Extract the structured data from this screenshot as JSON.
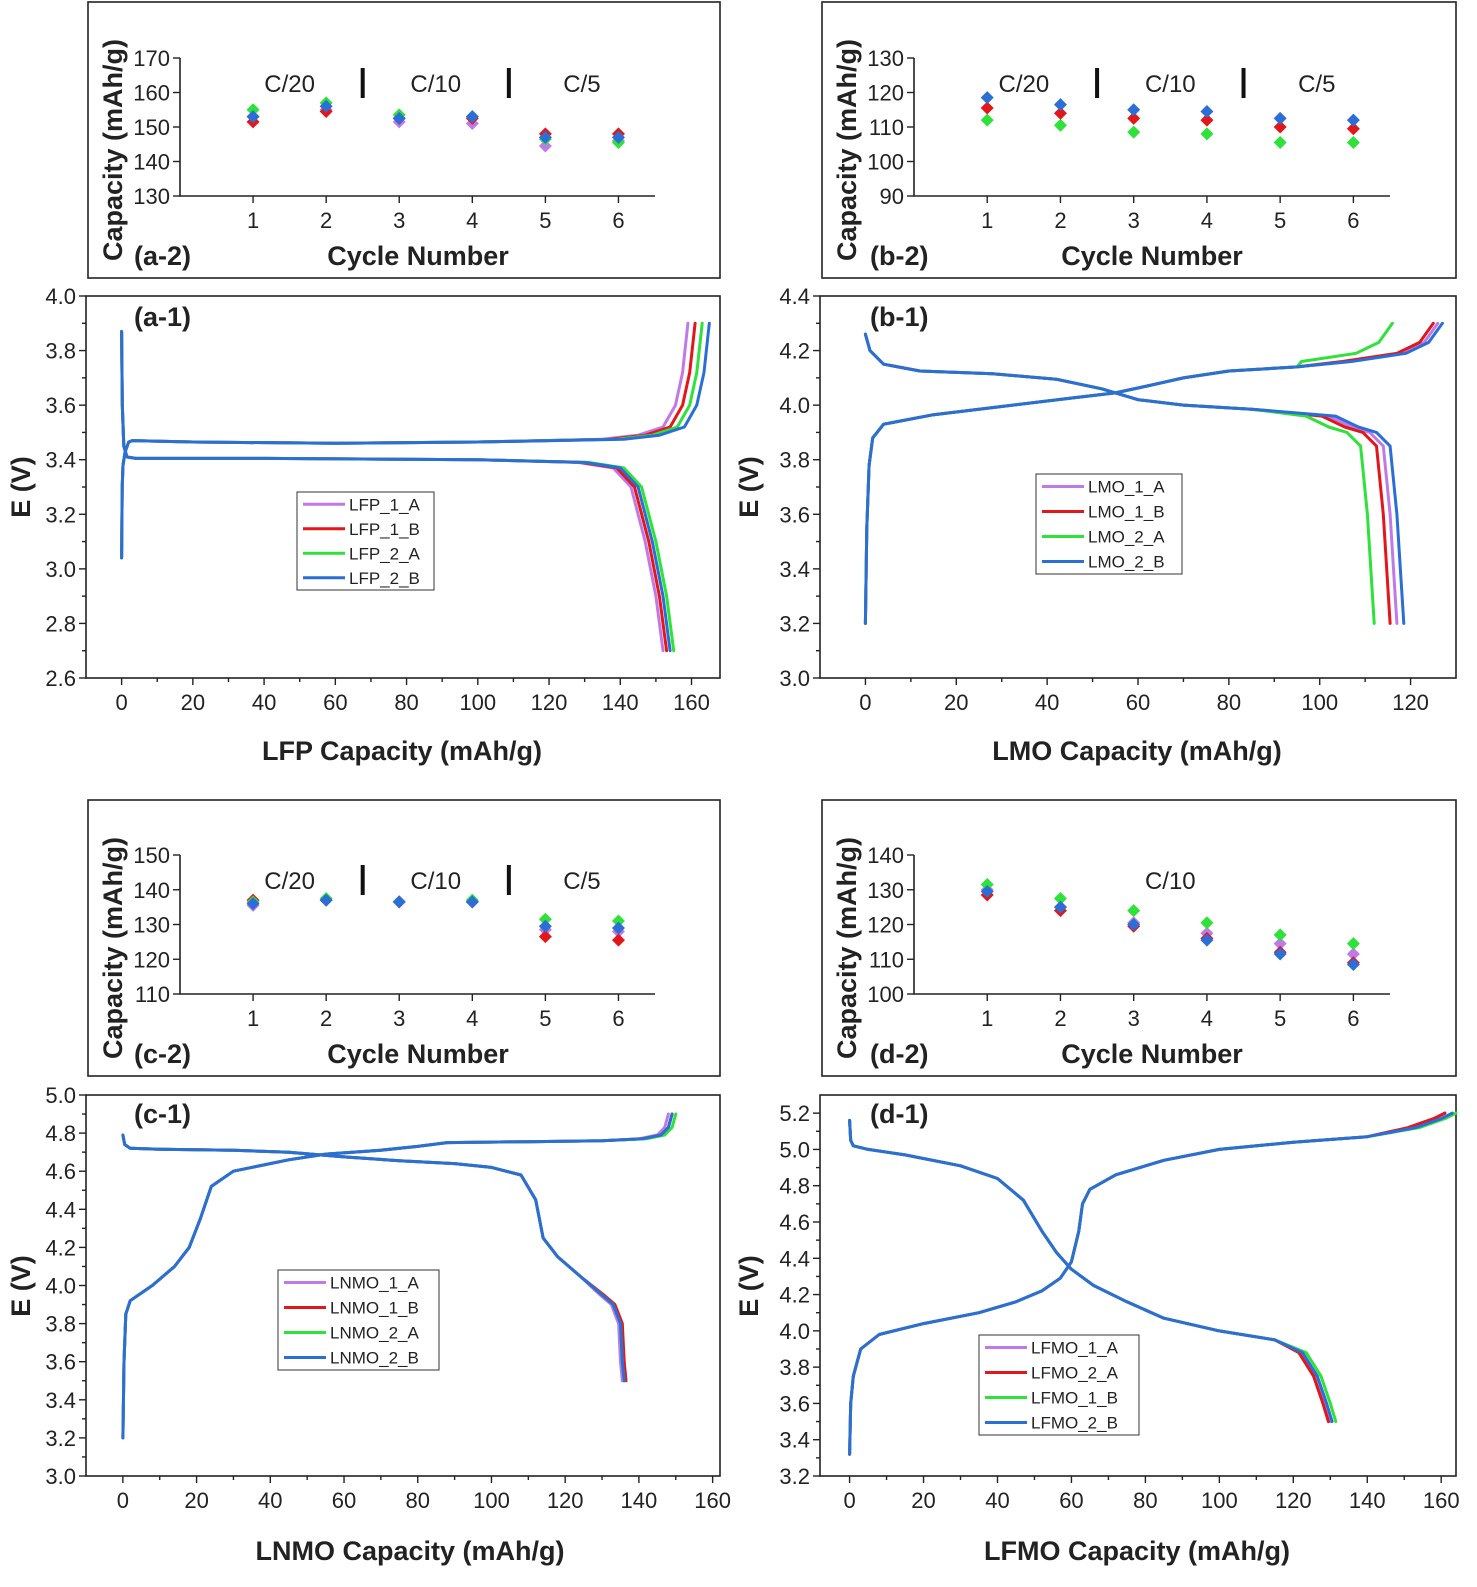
{
  "colors": {
    "purple": "#c07ae8",
    "red": "#e3171a",
    "green": "#2ee23a",
    "blue": "#2b6fd6"
  },
  "chart_data": [
    {
      "id": "a-2",
      "type": "scatter",
      "panel_label": "(a-2)",
      "xlabel": "Cycle Number",
      "ylabel": "Capacity (mAh/g)",
      "xlim": [
        0.0,
        6.5
      ],
      "ylim": [
        130,
        170
      ],
      "xticks": [
        1,
        2,
        3,
        4,
        5,
        6
      ],
      "yticks": [
        130,
        140,
        150,
        160,
        170
      ],
      "rate_labels": [
        {
          "text": "C/20",
          "x": 1.5
        },
        {
          "text": "C/10",
          "x": 3.5
        },
        {
          "text": "C/5",
          "x": 5.5
        }
      ],
      "dividers": [
        2.5,
        4.5
      ],
      "series": [
        {
          "color": "purple",
          "x": [
            1,
            2,
            3,
            4,
            5,
            6
          ],
          "y": [
            153,
            155,
            151.5,
            151,
            144.5,
            146
          ]
        },
        {
          "color": "red",
          "x": [
            1,
            2,
            3,
            4,
            5,
            6
          ],
          "y": [
            151.5,
            154.5,
            152.5,
            152.5,
            148,
            148
          ]
        },
        {
          "color": "green",
          "x": [
            1,
            2,
            3,
            4,
            5,
            6
          ],
          "y": [
            155,
            157,
            153.5,
            153,
            146.5,
            145.5
          ]
        },
        {
          "color": "blue",
          "x": [
            1,
            2,
            3,
            4,
            5,
            6
          ],
          "y": [
            153,
            156,
            152.5,
            153,
            147,
            147
          ]
        }
      ]
    },
    {
      "id": "b-2",
      "type": "scatter",
      "panel_label": "(b-2)",
      "xlabel": "Cycle Number",
      "ylabel": "Capacity (mAh/g)",
      "xlim": [
        0.0,
        6.5
      ],
      "ylim": [
        90,
        130
      ],
      "xticks": [
        1,
        2,
        3,
        4,
        5,
        6
      ],
      "yticks": [
        90,
        100,
        110,
        120,
        130
      ],
      "rate_labels": [
        {
          "text": "C/20",
          "x": 1.5
        },
        {
          "text": "C/10",
          "x": 3.5
        },
        {
          "text": "C/5",
          "x": 5.5
        }
      ],
      "dividers": [
        2.5,
        4.5
      ],
      "series": [
        {
          "color": "green",
          "x": [
            1,
            2,
            3,
            4,
            5,
            6
          ],
          "y": [
            112,
            110.5,
            108.5,
            108,
            105.5,
            105.5
          ]
        },
        {
          "color": "red",
          "x": [
            1,
            2,
            3,
            4,
            5,
            6
          ],
          "y": [
            115.5,
            114,
            112.5,
            112,
            110,
            109.5
          ]
        },
        {
          "color": "blue",
          "x": [
            1,
            2,
            3,
            4,
            5,
            6
          ],
          "y": [
            118.5,
            116.5,
            115,
            114.5,
            112.5,
            112
          ]
        }
      ]
    },
    {
      "id": "a-1",
      "type": "line",
      "panel_label": "(a-1)",
      "xlabel": "LFP Capacity (mAh/g)",
      "ylabel": "E (V)",
      "xlim": [
        -10,
        168
      ],
      "ylim": [
        2.6,
        4.0
      ],
      "xticks": [
        0,
        20,
        40,
        60,
        80,
        100,
        120,
        140,
        160
      ],
      "yticks": [
        2.6,
        2.8,
        3.0,
        3.2,
        3.4,
        3.6,
        3.8,
        4.0
      ],
      "legend": {
        "position": "center-left",
        "entries": [
          {
            "name": "LFP_1_A",
            "color": "purple"
          },
          {
            "name": "LFP_1_B",
            "color": "red"
          },
          {
            "name": "LFP_2_A",
            "color": "green"
          },
          {
            "name": "LFP_2_B",
            "color": "blue"
          }
        ]
      },
      "series": [
        {
          "color": "purple",
          "charge_end": 159,
          "discharge_end": 152
        },
        {
          "color": "red",
          "charge_end": 161,
          "discharge_end": 153
        },
        {
          "color": "green",
          "charge_end": 163,
          "discharge_end": 155
        },
        {
          "color": "blue",
          "charge_end": 165,
          "discharge_end": 154
        }
      ]
    },
    {
      "id": "b-1",
      "type": "line",
      "panel_label": "(b-1)",
      "xlabel": "LMO Capacity (mAh/g)",
      "ylabel": "E (V)",
      "xlim": [
        -10,
        130
      ],
      "ylim": [
        3.0,
        4.4
      ],
      "xticks": [
        0,
        20,
        40,
        60,
        80,
        100,
        120
      ],
      "yticks": [
        3.0,
        3.2,
        3.4,
        3.6,
        3.8,
        4.0,
        4.2,
        4.4
      ],
      "legend": {
        "position": "center",
        "entries": [
          {
            "name": "LMO_1_A",
            "color": "purple"
          },
          {
            "name": "LMO_1_B",
            "color": "red"
          },
          {
            "name": "LMO_2_A",
            "color": "green"
          },
          {
            "name": "LMO_2_B",
            "color": "blue"
          }
        ]
      },
      "series": [
        {
          "color": "purple",
          "charge_end": 126,
          "discharge_end": 117
        },
        {
          "color": "red",
          "charge_end": 125,
          "discharge_end": 115.5
        },
        {
          "color": "green",
          "charge_end": 116,
          "discharge_end": 112
        },
        {
          "color": "blue",
          "charge_end": 127,
          "discharge_end": 118.5
        }
      ]
    },
    {
      "id": "c-2",
      "type": "scatter",
      "panel_label": "(c-2)",
      "xlabel": "Cycle Number",
      "ylabel": "Capacity (mAh/g)",
      "xlim": [
        0.0,
        6.5
      ],
      "ylim": [
        110,
        150
      ],
      "xticks": [
        1,
        2,
        3,
        4,
        5,
        6
      ],
      "yticks": [
        110,
        120,
        130,
        140,
        150
      ],
      "rate_labels": [
        {
          "text": "C/20",
          "x": 1.5
        },
        {
          "text": "C/10",
          "x": 3.5
        },
        {
          "text": "C/5",
          "x": 5.5
        }
      ],
      "dividers": [
        2.5,
        4.5
      ],
      "series": [
        {
          "color": "purple",
          "x": [
            1,
            2,
            3,
            4,
            5,
            6
          ],
          "y": [
            135.5,
            137,
            136.5,
            136.5,
            128.5,
            128
          ]
        },
        {
          "color": "red",
          "x": [
            1,
            2,
            3,
            4,
            5,
            6
          ],
          "y": [
            137,
            137,
            136.5,
            136.5,
            126.5,
            125.5
          ]
        },
        {
          "color": "green",
          "x": [
            1,
            2,
            3,
            4,
            5,
            6
          ],
          "y": [
            136.5,
            137.5,
            136.5,
            137,
            131.5,
            131
          ]
        },
        {
          "color": "blue",
          "x": [
            1,
            2,
            3,
            4,
            5,
            6
          ],
          "y": [
            136,
            137,
            136.5,
            136.5,
            129.5,
            129
          ]
        }
      ]
    },
    {
      "id": "d-2",
      "type": "scatter",
      "panel_label": "(d-2)",
      "xlabel": "Cycle Number",
      "ylabel": "Capacity (mAh/g)",
      "xlim": [
        0.0,
        6.5
      ],
      "ylim": [
        100,
        140
      ],
      "xticks": [
        1,
        2,
        3,
        4,
        5,
        6
      ],
      "yticks": [
        100,
        110,
        120,
        130,
        140
      ],
      "rate_labels": [
        {
          "text": "C/10",
          "x": 3.5
        }
      ],
      "dividers": [],
      "series": [
        {
          "color": "purple",
          "x": [
            1,
            2,
            3,
            4,
            5,
            6
          ],
          "y": [
            130,
            125,
            120.5,
            117.5,
            114.5,
            111.5
          ]
        },
        {
          "color": "red",
          "x": [
            1,
            2,
            3,
            4,
            5,
            6
          ],
          "y": [
            128.5,
            124,
            119.5,
            116,
            112,
            109
          ]
        },
        {
          "color": "green",
          "x": [
            1,
            2,
            3,
            4,
            5,
            6
          ],
          "y": [
            131.5,
            127.5,
            124,
            120.5,
            117,
            114.5
          ]
        },
        {
          "color": "blue",
          "x": [
            1,
            2,
            3,
            4,
            5,
            6
          ],
          "y": [
            129.5,
            125,
            120,
            115.5,
            111.5,
            108.5
          ]
        }
      ]
    },
    {
      "id": "c-1",
      "type": "line",
      "panel_label": "(c-1)",
      "xlabel": "LNMO Capacity (mAh/g)",
      "ylabel": "E (V)",
      "xlim": [
        -10,
        162
      ],
      "ylim": [
        3.0,
        5.0
      ],
      "xticks": [
        0,
        20,
        40,
        60,
        80,
        100,
        120,
        140,
        160
      ],
      "yticks": [
        3.0,
        3.2,
        3.4,
        3.6,
        3.8,
        4.0,
        4.2,
        4.4,
        4.6,
        4.8,
        5.0
      ],
      "legend": {
        "position": "center-left",
        "entries": [
          {
            "name": "LNMO_1_A",
            "color": "purple"
          },
          {
            "name": "LNMO_1_B",
            "color": "red"
          },
          {
            "name": "LNMO_2_A",
            "color": "green"
          },
          {
            "name": "LNMO_2_B",
            "color": "blue"
          }
        ]
      },
      "series": [
        {
          "color": "purple",
          "charge_end": 148,
          "discharge_end": 135.5
        },
        {
          "color": "red",
          "charge_end": 149,
          "discharge_end": 136.5
        },
        {
          "color": "green",
          "charge_end": 150,
          "discharge_end": 136
        },
        {
          "color": "blue",
          "charge_end": 149,
          "discharge_end": 136
        }
      ]
    },
    {
      "id": "d-1",
      "type": "line",
      "panel_label": "(d-1)",
      "xlabel": "LFMO Capacity (mAh/g)",
      "ylabel": "E (V)",
      "xlim": [
        -8,
        164
      ],
      "ylim": [
        3.2,
        5.3
      ],
      "xticks": [
        0,
        20,
        40,
        60,
        80,
        100,
        120,
        140,
        160
      ],
      "yticks": [
        3.2,
        3.4,
        3.6,
        3.8,
        4.0,
        4.2,
        4.4,
        4.6,
        4.8,
        5.0,
        5.2
      ],
      "legend": {
        "position": "bottom-center",
        "entries": [
          {
            "name": "LFMO_1_A",
            "color": "purple"
          },
          {
            "name": "LFMO_2_A",
            "color": "red"
          },
          {
            "name": "LFMO_1_B",
            "color": "green"
          },
          {
            "name": "LFMO_2_B",
            "color": "blue"
          }
        ]
      },
      "series": [
        {
          "color": "purple",
          "charge_end": 161,
          "discharge_end": 130
        },
        {
          "color": "red",
          "charge_end": 161,
          "discharge_end": 129.5
        },
        {
          "color": "green",
          "charge_end": 164,
          "discharge_end": 131.5
        },
        {
          "color": "blue",
          "charge_end": 163,
          "discharge_end": 130.5
        }
      ]
    }
  ]
}
